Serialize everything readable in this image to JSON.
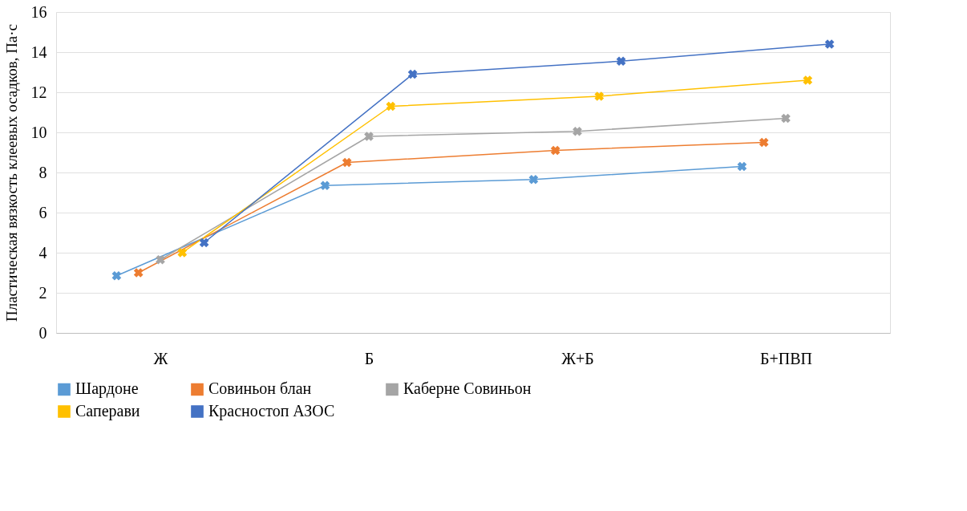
{
  "chart_data": {
    "type": "line",
    "ylabel": "Пластическая вязкость клеевых осадков, Па·с",
    "categories": [
      "Ж",
      "Б",
      "Ж+Б",
      "Б+ПВП"
    ],
    "series": [
      {
        "name": "Шардоне",
        "color": "#5b9bd5",
        "values": [
          2.85,
          7.35,
          7.65,
          8.3
        ]
      },
      {
        "name": "Совиньон блан",
        "color": "#ed7d31",
        "values": [
          3.0,
          8.5,
          9.1,
          9.5
        ]
      },
      {
        "name": "Каберне Совиньон",
        "color": "#a5a5a5",
        "values": [
          3.65,
          9.8,
          10.05,
          10.7
        ]
      },
      {
        "name": "Саперави",
        "color": "#ffc000",
        "values": [
          4.0,
          11.3,
          11.8,
          12.6
        ]
      },
      {
        "name": "Красностоп АЗОС",
        "color": "#4472c4",
        "values": [
          4.5,
          12.9,
          13.55,
          14.4
        ]
      }
    ],
    "ylim": [
      0,
      16
    ],
    "yticks": [
      0,
      2,
      4,
      6,
      8,
      10,
      12,
      14,
      16
    ],
    "grid": "y",
    "legend": "bottom",
    "marker": "cross",
    "line_style": "solid"
  }
}
